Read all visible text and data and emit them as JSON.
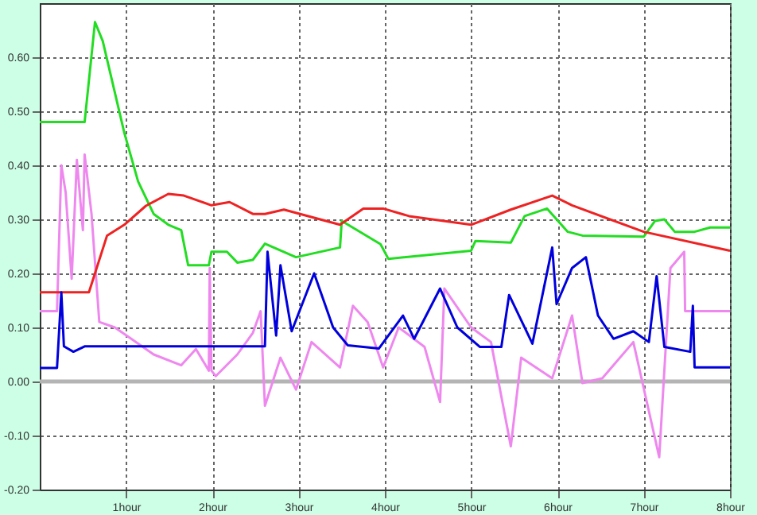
{
  "chart_data": {
    "type": "line",
    "xlim": [
      0,
      8
    ],
    "xticks": [
      {
        "value": 1,
        "label": "1hour"
      },
      {
        "value": 2,
        "label": "2hour"
      },
      {
        "value": 3,
        "label": "3hour"
      },
      {
        "value": 4,
        "label": "4hour"
      },
      {
        "value": 5,
        "label": "5hour"
      },
      {
        "value": 6,
        "label": "6hour"
      },
      {
        "value": 7,
        "label": "7hour"
      },
      {
        "value": 8,
        "label": "8hour"
      }
    ],
    "ylim": [
      -0.2,
      0.7
    ],
    "yticks": [
      {
        "value": -0.2,
        "label": "-0.20"
      },
      {
        "value": -0.1,
        "label": "-0.10"
      },
      {
        "value": 0,
        "label": "0.00"
      },
      {
        "value": 0.1,
        "label": "0.10"
      },
      {
        "value": 0.2,
        "label": "0.20"
      },
      {
        "value": 0.3,
        "label": "0.30"
      },
      {
        "value": 0.4,
        "label": "0.40"
      },
      {
        "value": 0.5,
        "label": "0.50"
      },
      {
        "value": 0.6,
        "label": "0.60"
      }
    ],
    "grid": true,
    "line_style": "solid",
    "ref_lines": [
      {
        "axis": "y",
        "value": 0,
        "color": "#b4b4b4"
      }
    ],
    "series": [
      {
        "color": "#ee88ee",
        "x": [
          0,
          0.2,
          0.25,
          0.3,
          0.37,
          0.43,
          0.5,
          0.52,
          0.6,
          0.69,
          0.87,
          1.05,
          1.32,
          1.64,
          1.81,
          1.96,
          1.97,
          1.99,
          2.04,
          2.29,
          2.47,
          2.56,
          2.61,
          2.79,
          2.97,
          3.15,
          3.48,
          3.63,
          3.8,
          3.98,
          4.16,
          4.46,
          4.64,
          4.69,
          5.0,
          5.23,
          5.46,
          5.58,
          5.94,
          6.17,
          6.29,
          6.52,
          6.88,
          7.18,
          7.31,
          7.47,
          7.48,
          8
        ],
        "values": [
          0.13,
          0.13,
          0.4,
          0.35,
          0.19,
          0.41,
          0.28,
          0.42,
          0.31,
          0.11,
          0.1,
          0.08,
          0.05,
          0.03,
          0.06,
          0.02,
          0.21,
          0.02,
          0.01,
          0.05,
          0.09,
          0.13,
          -0.045,
          0.044,
          -0.015,
          0.073,
          0.026,
          0.14,
          0.11,
          0.026,
          0.1,
          0.064,
          -0.038,
          0.172,
          0.1,
          0.073,
          -0.12,
          0.044,
          0.006,
          0.122,
          -0.003,
          0.006,
          0.073,
          -0.14,
          0.21,
          0.24,
          0.13,
          0.13
        ]
      },
      {
        "color": "#22dd22",
        "x": [
          0,
          0.52,
          0.64,
          0.73,
          0.98,
          1.14,
          1.32,
          1.49,
          1.64,
          1.72,
          1.96,
          1.99,
          2.17,
          2.29,
          2.47,
          2.61,
          2.97,
          3.48,
          3.5,
          3.95,
          4.04,
          5.0,
          5.05,
          5.46,
          5.62,
          5.88,
          6.12,
          6.29,
          7.0,
          7.13,
          7.24,
          7.36,
          7.59,
          7.77,
          8
        ],
        "values": [
          0.48,
          0.48,
          0.665,
          0.63,
          0.46,
          0.37,
          0.31,
          0.29,
          0.28,
          0.215,
          0.215,
          0.24,
          0.24,
          0.22,
          0.225,
          0.255,
          0.23,
          0.248,
          0.297,
          0.254,
          0.227,
          0.242,
          0.26,
          0.257,
          0.306,
          0.32,
          0.277,
          0.27,
          0.268,
          0.297,
          0.3,
          0.277,
          0.277,
          0.285,
          0.285
        ]
      },
      {
        "color": "#ee2222",
        "x": [
          0,
          0.57,
          0.78,
          0.98,
          1.23,
          1.49,
          1.67,
          1.99,
          2.2,
          2.47,
          2.61,
          2.83,
          3.48,
          3.75,
          3.98,
          4.28,
          5.0,
          5.46,
          5.94,
          6.17,
          7.0,
          8
        ],
        "values": [
          0.165,
          0.165,
          0.27,
          0.29,
          0.325,
          0.347,
          0.344,
          0.326,
          0.332,
          0.31,
          0.31,
          0.318,
          0.29,
          0.32,
          0.32,
          0.306,
          0.29,
          0.318,
          0.344,
          0.326,
          0.277,
          0.242
        ]
      },
      {
        "color": "#0000dd",
        "x": [
          0,
          0.2,
          0.25,
          0.28,
          0.39,
          0.52,
          2.61,
          2.64,
          2.74,
          2.79,
          2.92,
          3.18,
          3.4,
          3.57,
          3.93,
          4.21,
          4.34,
          4.64,
          4.84,
          5.1,
          5.35,
          5.44,
          5.71,
          5.94,
          5.99,
          6.17,
          6.33,
          6.47,
          6.65,
          6.88,
          7.06,
          7.15,
          7.24,
          7.54,
          7.57,
          7.59,
          8
        ],
        "values": [
          0.025,
          0.025,
          0.165,
          0.065,
          0.055,
          0.065,
          0.065,
          0.24,
          0.085,
          0.215,
          0.093,
          0.2,
          0.1,
          0.067,
          0.061,
          0.122,
          0.079,
          0.172,
          0.1,
          0.064,
          0.064,
          0.16,
          0.07,
          0.248,
          0.143,
          0.21,
          0.23,
          0.122,
          0.079,
          0.093,
          0.073,
          0.195,
          0.064,
          0.055,
          0.14,
          0.026,
          0.026
        ]
      }
    ]
  }
}
